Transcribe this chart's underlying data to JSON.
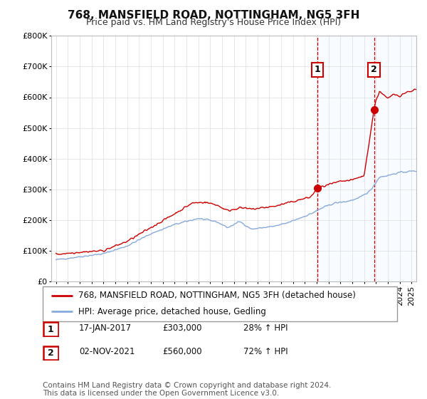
{
  "title": "768, MANSFIELD ROAD, NOTTINGHAM, NG5 3FH",
  "subtitle": "Price paid vs. HM Land Registry's House Price Index (HPI)",
  "ylim": [
    0,
    800000
  ],
  "yticks": [
    0,
    100000,
    200000,
    300000,
    400000,
    500000,
    600000,
    700000,
    800000
  ],
  "ytick_labels": [
    "£0",
    "£100K",
    "£200K",
    "£300K",
    "£400K",
    "£500K",
    "£600K",
    "£700K",
    "£800K"
  ],
  "xlim_start": 1994.6,
  "xlim_end": 2025.4,
  "transaction1_year": 2017.04,
  "transaction1_price": 303000,
  "transaction1_label": "1",
  "transaction1_date": "17-JAN-2017",
  "transaction1_text": "£303,000",
  "transaction1_hpi": "28% ↑ HPI",
  "transaction2_year": 2021.83,
  "transaction2_price": 560000,
  "transaction2_label": "2",
  "transaction2_date": "02-NOV-2021",
  "transaction2_text": "£560,000",
  "transaction2_hpi": "72% ↑ HPI",
  "line_color_house": "#cc0000",
  "line_color_hpi": "#88aadd",
  "vline_color": "#cc0000",
  "shading_color": "#ddeeff",
  "legend_label_house": "768, MANSFIELD ROAD, NOTTINGHAM, NG5 3FH (detached house)",
  "legend_label_hpi": "HPI: Average price, detached house, Gedling",
  "footer_text": "Contains HM Land Registry data © Crown copyright and database right 2024.\nThis data is licensed under the Open Government Licence v3.0.",
  "background_color": "#ffffff",
  "grid_color": "#dddddd",
  "title_fontsize": 11,
  "subtitle_fontsize": 9,
  "tick_fontsize": 8,
  "legend_fontsize": 8.5,
  "footer_fontsize": 7.5
}
